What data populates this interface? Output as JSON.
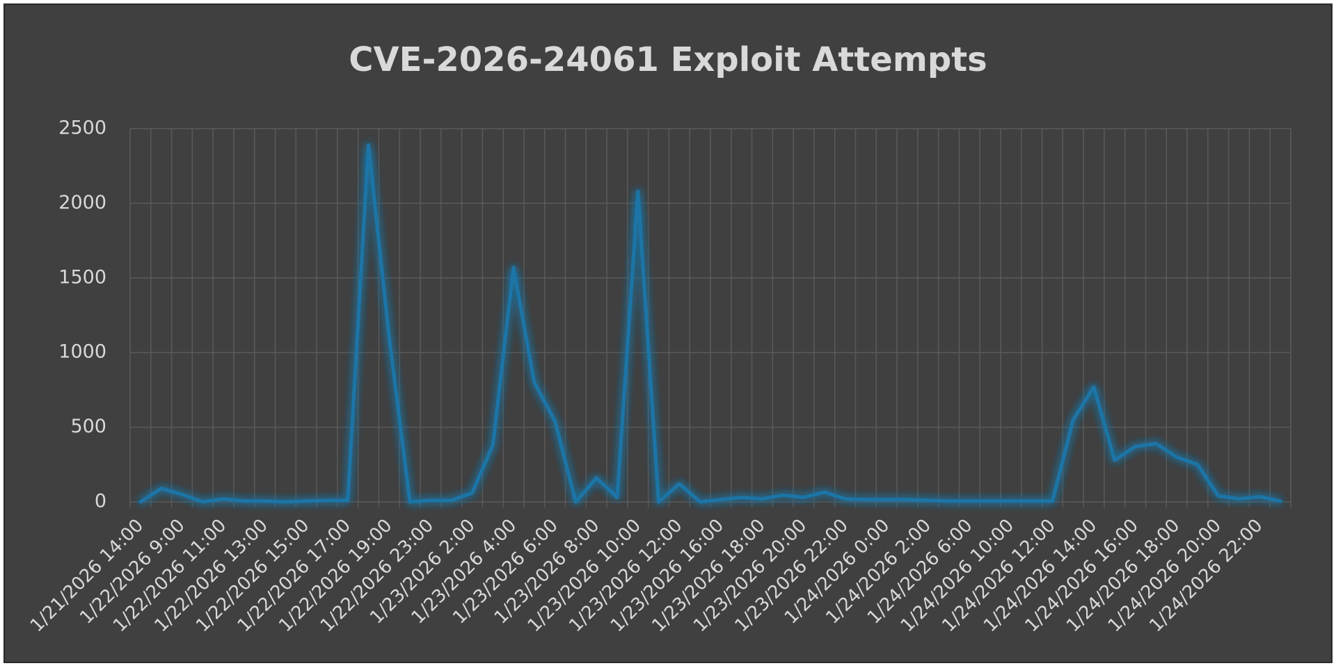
{
  "chart_data": {
    "type": "line",
    "title": "CVE-2026-24061 Exploit Attempts",
    "categories": [
      "1/21/2026 14:00",
      null,
      "1/22/2026 9:00",
      null,
      "1/22/2026 11:00",
      null,
      "1/22/2026 13:00",
      null,
      "1/22/2026 15:00",
      null,
      "1/22/2026 17:00",
      null,
      "1/22/2026 19:00",
      null,
      "1/22/2026 23:00",
      null,
      "1/23/2026 2:00",
      null,
      "1/23/2026 4:00",
      null,
      "1/23/2026 6:00",
      null,
      "1/23/2026 8:00",
      null,
      "1/23/2026 10:00",
      null,
      "1/23/2026 12:00",
      null,
      "1/23/2026 16:00",
      null,
      "1/23/2026 18:00",
      null,
      "1/23/2026 20:00",
      null,
      "1/23/2026 22:00",
      null,
      "1/24/2026 0:00",
      null,
      "1/24/2026 2:00",
      null,
      "1/24/2026 6:00",
      null,
      "1/24/2026 10:00",
      null,
      "1/24/2026 12:00",
      null,
      "1/24/2026 14:00",
      null,
      "1/24/2026 16:00",
      null,
      "1/24/2026 18:00",
      null,
      "1/24/2026 20:00",
      null,
      "1/24/2026 22:00",
      null
    ],
    "values": [
      0,
      90,
      50,
      0,
      20,
      5,
      5,
      0,
      5,
      10,
      10,
      2390,
      1100,
      0,
      10,
      10,
      60,
      380,
      1570,
      800,
      540,
      0,
      160,
      30,
      2080,
      0,
      120,
      0,
      15,
      30,
      20,
      45,
      30,
      65,
      20,
      15,
      15,
      15,
      10,
      5,
      5,
      5,
      5,
      5,
      5,
      550,
      770,
      280,
      370,
      390,
      300,
      250,
      40,
      20,
      35,
      5
    ],
    "color": "#1f74a6",
    "ylim": [
      0,
      2500
    ],
    "yticks": [
      0,
      500,
      1000,
      1500,
      2000,
      2500
    ],
    "grid": true
  }
}
